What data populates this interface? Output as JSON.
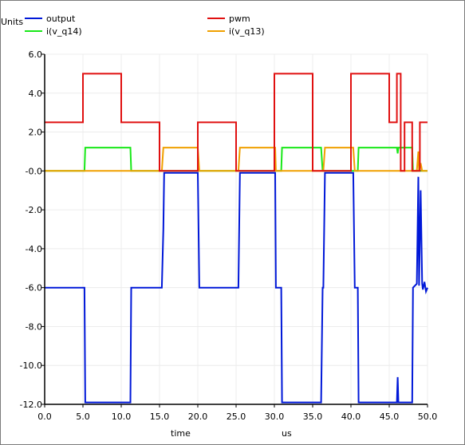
{
  "chart_data": {
    "type": "line",
    "y_units_label": "Units",
    "xlabel": "time",
    "x_units_label": "us",
    "xlim": [
      0,
      50
    ],
    "ylim": [
      -12,
      6
    ],
    "x_ticks": [
      "0.0",
      "5.0",
      "10.0",
      "15.0",
      "20.0",
      "25.0",
      "30.0",
      "35.0",
      "40.0",
      "45.0",
      "50.0"
    ],
    "y_ticks": [
      "6.0",
      "4.0",
      "2.0",
      "-0.0",
      "-2.0",
      "-4.0",
      "-6.0",
      "-8.0",
      "-10.0",
      "-12.0"
    ],
    "grid": true,
    "legend_position": "top",
    "series": [
      {
        "name": "output",
        "color": "#0018d8",
        "x": [
          0,
          5.2,
          5.3,
          11.2,
          11.3,
          15.3,
          15.5,
          15.6,
          20.0,
          20.2,
          25.3,
          25.5,
          30.1,
          30.2,
          30.9,
          31.0,
          36.1,
          36.3,
          36.4,
          36.6,
          40.3,
          40.5,
          40.9,
          41.0,
          46.0,
          46.1,
          46.2,
          48.0,
          48.1,
          48.6,
          48.8,
          48.9,
          49.1,
          49.3,
          49.4,
          49.6,
          49.8,
          50.0
        ],
        "y": [
          -6.0,
          -6.0,
          -11.9,
          -11.9,
          -6.0,
          -6.0,
          -3.0,
          -0.1,
          -0.1,
          -6.0,
          -6.0,
          -0.1,
          -0.1,
          -6.0,
          -6.0,
          -11.9,
          -11.9,
          -6.0,
          -6.0,
          -0.1,
          -0.1,
          -6.0,
          -6.0,
          -11.9,
          -11.9,
          -10.6,
          -11.9,
          -11.9,
          -6.0,
          -5.8,
          -0.3,
          -5.9,
          -1.0,
          -5.8,
          -6.1,
          -5.7,
          -6.2,
          -6.0
        ]
      },
      {
        "name": "pwm",
        "color": "#e01010",
        "x": [
          0,
          5.0,
          5.0,
          10.0,
          10.0,
          15.0,
          15.0,
          20.0,
          20.0,
          25.0,
          25.0,
          30.0,
          30.0,
          35.0,
          35.0,
          40.0,
          40.0,
          45.0,
          45.0,
          46.0,
          46.0,
          46.5,
          46.5,
          47.0,
          47.0,
          48.0,
          48.0,
          49.0,
          49.0,
          50.0
        ],
        "y": [
          2.5,
          2.5,
          5.0,
          5.0,
          2.5,
          2.5,
          0.0,
          0.0,
          2.5,
          2.5,
          0.0,
          0.0,
          5.0,
          5.0,
          0.0,
          0.0,
          5.0,
          5.0,
          2.5,
          2.5,
          5.0,
          5.0,
          0.0,
          0.0,
          2.5,
          2.5,
          0.0,
          0.0,
          2.5,
          2.5
        ]
      },
      {
        "name": "i(v_q14)",
        "color": "#18e818",
        "x": [
          0,
          5.2,
          5.3,
          11.2,
          11.3,
          30.9,
          31.0,
          36.1,
          36.3,
          40.9,
          41.0,
          46.0,
          46.1,
          46.2,
          48.0,
          48.1,
          50.0
        ],
        "y": [
          0.0,
          0.0,
          1.2,
          1.2,
          0.0,
          0.0,
          1.2,
          1.2,
          0.0,
          0.0,
          1.2,
          1.2,
          0.9,
          1.2,
          1.2,
          0.0,
          0.0
        ]
      },
      {
        "name": "i(v_q13)",
        "color": "#f0a000",
        "x": [
          0,
          15.3,
          15.5,
          20.0,
          20.2,
          25.3,
          25.5,
          30.1,
          30.2,
          36.4,
          36.6,
          40.3,
          40.5,
          48.6,
          48.8,
          48.9,
          49.1,
          49.3,
          50.0
        ],
        "y": [
          0.0,
          0.0,
          1.2,
          1.2,
          0.0,
          0.0,
          1.2,
          1.2,
          0.0,
          0.0,
          1.2,
          1.2,
          0.0,
          0.0,
          1.0,
          0.0,
          0.4,
          0.0,
          0.0
        ]
      }
    ]
  }
}
